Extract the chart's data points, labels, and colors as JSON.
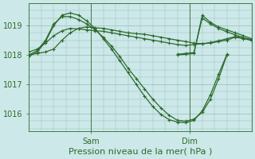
{
  "bg_color": "#cce8e8",
  "grid_color": "#99bbbb",
  "line_color": "#2d6a2d",
  "xlabel": "Pression niveau de la mer( hPa )",
  "xlabel_fontsize": 8,
  "yticks": [
    1016,
    1017,
    1018,
    1019
  ],
  "ylim": [
    1015.4,
    1019.75
  ],
  "xlim": [
    0,
    54
  ],
  "xtick_positions": [
    15,
    39
  ],
  "xtick_labels": [
    "Sam",
    "Dim"
  ],
  "series": [
    {
      "x": [
        0,
        2,
        4,
        6,
        8,
        10,
        12,
        14,
        16,
        18,
        20,
        22,
        24,
        26,
        28,
        30,
        32,
        34,
        36,
        38,
        40,
        42,
        44,
        46,
        48,
        50,
        52,
        54
      ],
      "y": [
        1018.0,
        1018.05,
        1018.1,
        1018.2,
        1018.5,
        1018.75,
        1018.9,
        1018.95,
        1018.92,
        1018.9,
        1018.85,
        1018.8,
        1018.75,
        1018.72,
        1018.7,
        1018.65,
        1018.6,
        1018.55,
        1018.5,
        1018.45,
        1018.4,
        1018.38,
        1018.4,
        1018.45,
        1018.5,
        1018.6,
        1018.55,
        1018.5
      ]
    },
    {
      "x": [
        0,
        2,
        4,
        6,
        8,
        10,
        12,
        14,
        16,
        18,
        20,
        22,
        24,
        26,
        28,
        30,
        32,
        34,
        36,
        38,
        40,
        42,
        44,
        46,
        48,
        50,
        52,
        54
      ],
      "y": [
        1018.1,
        1018.2,
        1018.4,
        1018.65,
        1018.82,
        1018.9,
        1018.88,
        1018.85,
        1018.82,
        1018.8,
        1018.75,
        1018.7,
        1018.65,
        1018.6,
        1018.55,
        1018.5,
        1018.45,
        1018.4,
        1018.35,
        1018.32,
        1018.35,
        1018.38,
        1018.42,
        1018.48,
        1018.55,
        1018.62,
        1018.58,
        1018.52
      ]
    },
    {
      "x": [
        0,
        2,
        4,
        6,
        8,
        10,
        12,
        14,
        16,
        18,
        20,
        22,
        24,
        26,
        28,
        30,
        32,
        34,
        36,
        38,
        40,
        42,
        44,
        46,
        48
      ],
      "y": [
        1018.0,
        1018.15,
        1018.5,
        1019.05,
        1019.3,
        1019.3,
        1019.2,
        1019.05,
        1018.85,
        1018.6,
        1018.3,
        1017.95,
        1017.55,
        1017.2,
        1016.85,
        1016.5,
        1016.2,
        1015.95,
        1015.78,
        1015.75,
        1015.82,
        1016.05,
        1016.5,
        1017.2,
        1018.0
      ]
    },
    {
      "x": [
        0,
        2,
        4,
        6,
        8,
        10,
        12,
        14,
        16,
        18,
        20,
        22,
        24,
        26,
        28,
        30,
        32,
        34,
        36,
        38,
        40,
        42,
        44,
        46,
        48
      ],
      "y": [
        1017.95,
        1018.1,
        1018.45,
        1019.0,
        1019.35,
        1019.42,
        1019.35,
        1019.15,
        1018.9,
        1018.55,
        1018.2,
        1017.8,
        1017.4,
        1017.0,
        1016.6,
        1016.25,
        1015.98,
        1015.8,
        1015.72,
        1015.7,
        1015.78,
        1016.1,
        1016.65,
        1017.35,
        1018.02
      ]
    }
  ],
  "right_series": [
    {
      "x": [
        36,
        38,
        40,
        42,
        44,
        46,
        48,
        50,
        52,
        54
      ],
      "y": [
        1018.0,
        1018.02,
        1018.05,
        1019.35,
        1019.1,
        1018.95,
        1018.85,
        1018.75,
        1018.65,
        1018.55
      ]
    },
    {
      "x": [
        36,
        38,
        40,
        42,
        44,
        46,
        48,
        50,
        52,
        54
      ],
      "y": [
        1018.02,
        1018.05,
        1018.08,
        1019.25,
        1019.05,
        1018.9,
        1018.78,
        1018.68,
        1018.58,
        1018.48
      ]
    }
  ],
  "marker_size": 3,
  "linewidth": 0.9
}
